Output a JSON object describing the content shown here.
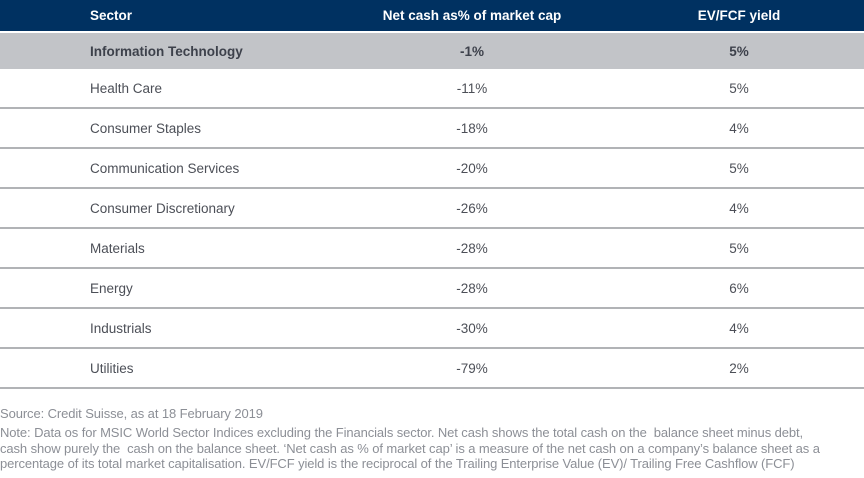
{
  "chart_data": {
    "type": "table",
    "columns": [
      "Sector",
      "Net cash as% of market cap",
      "EV/FCF yield"
    ],
    "rows": [
      [
        "Information Technology",
        "-1%",
        "5%"
      ],
      [
        "Health Care",
        "-11%",
        "5%"
      ],
      [
        "Consumer Staples",
        "-18%",
        "4%"
      ],
      [
        "Communication Services",
        "-20%",
        "5%"
      ],
      [
        "Consumer Discretionary",
        "-26%",
        "4%"
      ],
      [
        "Materials",
        "-28%",
        "5%"
      ],
      [
        "Energy",
        "-28%",
        "6%"
      ],
      [
        "Industrials",
        "-30%",
        "4%"
      ],
      [
        "Utilities",
        "-79%",
        "2%"
      ]
    ],
    "highlighted_row": "Information Technology",
    "legend_position": "none",
    "title": ""
  },
  "footer": {
    "source": "Source: Credit Suisse, as at 18 February 2019",
    "note_lines": [
      "Note: Data os for MSIC World Sector Indices excluding the Financials sector. Net cash shows the total cash on the  balance sheet minus debt,",
      "cash show purely the  cash on the balance sheet. ‘Net cash as % of market cap’ is a measure of the net cash on a company’s balance sheet as a",
      "percentage of its total market capitalisation. EV/FCF yield is the reciprocal of the Trailing Enterprise Value (EV)/ Trailing Free Cashflow (FCF)"
    ]
  },
  "colors": {
    "header_bg": "#003161",
    "header_text": "#ffffff",
    "highlight_row_bg": "#c2c4c8",
    "row_divider": "#b1b3b6",
    "body_text": "#4c4f57",
    "footer_text": "#8c8f96"
  }
}
